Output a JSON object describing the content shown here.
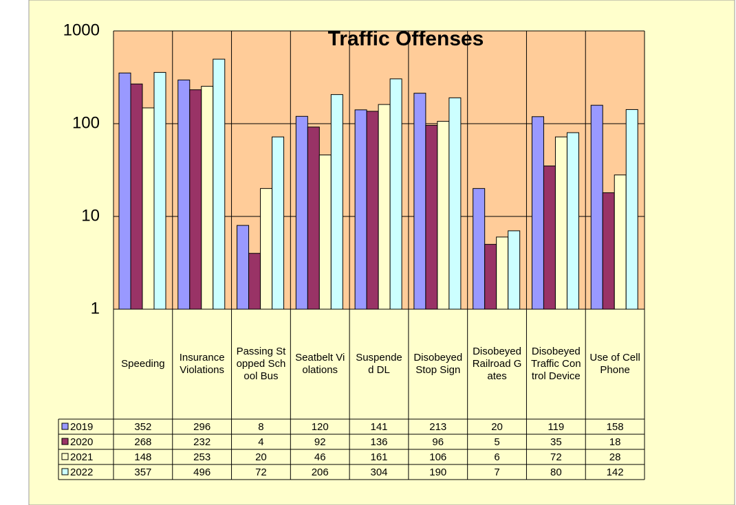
{
  "chart_data": {
    "type": "bar",
    "title": "Traffic Offenses",
    "categories": [
      "Speeding",
      "Insurance Violations",
      "Passing Stopped School Bus",
      "Seatbelt Violations",
      "Suspended DL",
      "Disobeyed Stop Sign",
      "Disobeyed Railroad Gates",
      "Disobeyed Traffic Control Device",
      "Use of Cell Phone"
    ],
    "series": [
      {
        "name": "2019",
        "color": "#9999ff",
        "values": [
          352,
          296,
          8,
          120,
          141,
          213,
          20,
          119,
          158
        ]
      },
      {
        "name": "2020",
        "color": "#993366",
        "values": [
          268,
          232,
          4,
          92,
          136,
          96,
          5,
          35,
          18
        ]
      },
      {
        "name": "2021",
        "color": "#ffffcc",
        "values": [
          148,
          253,
          20,
          46,
          161,
          106,
          6,
          72,
          28
        ]
      },
      {
        "name": "2022",
        "color": "#ccffff",
        "values": [
          357,
          496,
          72,
          206,
          304,
          190,
          7,
          80,
          142
        ]
      }
    ],
    "ylim": [
      1,
      1000
    ],
    "yticks": [
      1,
      10,
      100,
      1000
    ],
    "log_scale": true,
    "grid": true
  }
}
